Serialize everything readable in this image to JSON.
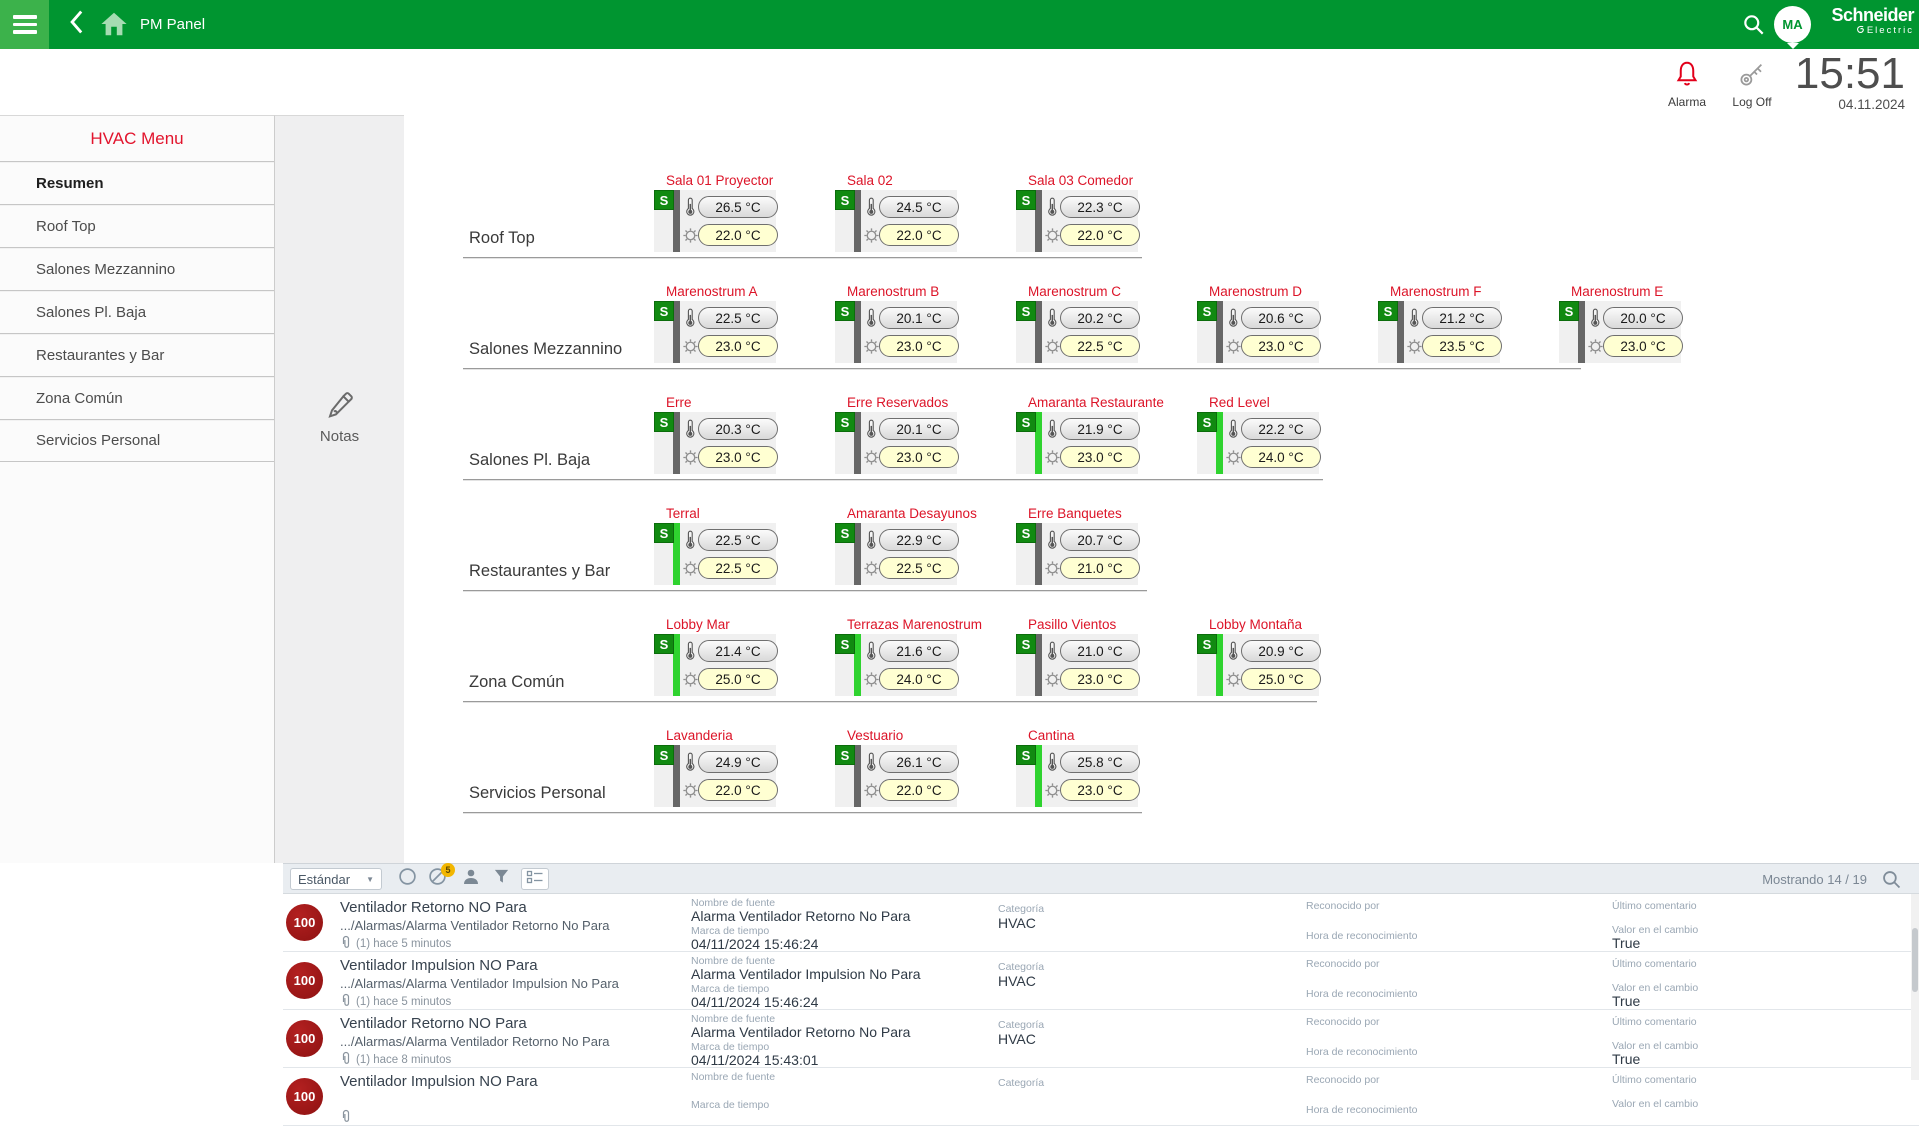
{
  "topbar": {
    "title": "PM Panel",
    "avatar_initials": "MA",
    "brand_line1": "Schneider",
    "brand_line2": "Electric"
  },
  "header": {
    "alarm_label": "Alarma",
    "logoff_label": "Log Off",
    "time": "15:51",
    "date": "04.11.2024"
  },
  "sidebar": {
    "title": "HVAC Menu",
    "items": [
      {
        "label": "Resumen",
        "active": true
      },
      {
        "label": "Roof Top",
        "active": false
      },
      {
        "label": "Salones Mezzannino",
        "active": false
      },
      {
        "label": "Salones Pl. Baja",
        "active": false
      },
      {
        "label": "Restaurantes y Bar",
        "active": false
      },
      {
        "label": "Zona Común",
        "active": false
      },
      {
        "label": "Servicios Personal",
        "active": false
      }
    ]
  },
  "notes": {
    "label": "Notas"
  },
  "groups": [
    {
      "name": "Roof Top",
      "zones": [
        {
          "name": "Sala 01 Proyector",
          "temp": "26.5 °C",
          "setpoint": "22.0 °C",
          "status": "gray"
        },
        {
          "name": "Sala 02",
          "temp": "24.5 °C",
          "setpoint": "22.0 °C",
          "status": "gray"
        },
        {
          "name": "Sala 03 Comedor",
          "temp": "22.3 °C",
          "setpoint": "22.0 °C",
          "status": "gray"
        }
      ]
    },
    {
      "name": "Salones Mezzannino",
      "zones": [
        {
          "name": "Marenostrum A",
          "temp": "22.5 °C",
          "setpoint": "23.0 °C",
          "status": "gray"
        },
        {
          "name": "Marenostrum B",
          "temp": "20.1 °C",
          "setpoint": "23.0 °C",
          "status": "gray"
        },
        {
          "name": "Marenostrum C",
          "temp": "20.2 °C",
          "setpoint": "22.5 °C",
          "status": "gray"
        },
        {
          "name": "Marenostrum D",
          "temp": "20.6 °C",
          "setpoint": "23.0 °C",
          "status": "gray"
        },
        {
          "name": "Marenostrum F",
          "temp": "21.2 °C",
          "setpoint": "23.5 °C",
          "status": "gray"
        },
        {
          "name": "Marenostrum E",
          "temp": "20.0 °C",
          "setpoint": "23.0 °C",
          "status": "gray"
        }
      ]
    },
    {
      "name": "Salones Pl. Baja",
      "zones": [
        {
          "name": "Erre",
          "temp": "20.3 °C",
          "setpoint": "23.0 °C",
          "status": "gray"
        },
        {
          "name": "Erre Reservados",
          "temp": "20.1 °C",
          "setpoint": "23.0 °C",
          "status": "gray"
        },
        {
          "name": "Amaranta Restaurante",
          "temp": "21.9 °C",
          "setpoint": "23.0 °C",
          "status": "green"
        },
        {
          "name": "Red Level",
          "temp": "22.2 °C",
          "setpoint": "24.0 °C",
          "status": "green"
        }
      ]
    },
    {
      "name": "Restaurantes y Bar",
      "zones": [
        {
          "name": "Terral",
          "temp": "22.5 °C",
          "setpoint": "22.5 °C",
          "status": "green"
        },
        {
          "name": "Amaranta Desayunos",
          "temp": "22.9 °C",
          "setpoint": "22.5 °C",
          "status": "gray"
        },
        {
          "name": "Erre Banquetes",
          "temp": "20.7 °C",
          "setpoint": "21.0 °C",
          "status": "gray"
        }
      ]
    },
    {
      "name": "Zona Común",
      "zones": [
        {
          "name": "Lobby Mar",
          "temp": "21.4 °C",
          "setpoint": "25.0 °C",
          "status": "green"
        },
        {
          "name": "Terrazas Marenostrum",
          "temp": "21.6 °C",
          "setpoint": "24.0 °C",
          "status": "green"
        },
        {
          "name": "Pasillo Vientos",
          "temp": "21.0 °C",
          "setpoint": "23.0 °C",
          "status": "gray"
        },
        {
          "name": "Lobby Montaña",
          "temp": "20.9 °C",
          "setpoint": "25.0 °C",
          "status": "green"
        }
      ]
    },
    {
      "name": "Servicios Personal",
      "zones": [
        {
          "name": "Lavanderia",
          "temp": "24.9 °C",
          "setpoint": "22.0 °C",
          "status": "gray"
        },
        {
          "name": "Vestuario",
          "temp": "26.1 °C",
          "setpoint": "22.0 °C",
          "status": "gray"
        },
        {
          "name": "Cantina",
          "temp": "25.8 °C",
          "setpoint": "23.0 °C",
          "status": "green"
        }
      ]
    }
  ],
  "alarm_panel": {
    "toolbar": {
      "view_label": "Estándar",
      "caret": "▼",
      "badge_count": "5",
      "showing": "Mostrando 14 / 19"
    },
    "field_labels": {
      "source": "Nombre de fuente",
      "timestamp": "Marca de tiempo",
      "category": "Categoría",
      "ack_by": "Reconocido por",
      "ack_time": "Hora de reconocimiento",
      "last_comment": "Último comentario",
      "value_change": "Valor en el cambio"
    },
    "rows": [
      {
        "priority": "100",
        "title": "Ventilador Retorno NO Para",
        "path": ".../Alarmas/Alarma Ventilador Retorno No Para",
        "attachment": "(1) hace 5 minutos",
        "source": "Alarma Ventilador Retorno No Para",
        "timestamp": "04/11/2024 15:46:24",
        "category": "HVAC",
        "value_change": "True"
      },
      {
        "priority": "100",
        "title": "Ventilador Impulsion NO Para",
        "path": ".../Alarmas/Alarma Ventilador Impulsion No Para",
        "attachment": "(1) hace 5 minutos",
        "source": "Alarma Ventilador Impulsion No Para",
        "timestamp": "04/11/2024 15:46:24",
        "category": "HVAC",
        "value_change": "True"
      },
      {
        "priority": "100",
        "title": "Ventilador Retorno NO Para",
        "path": ".../Alarmas/Alarma Ventilador Retorno No Para",
        "attachment": "(1) hace 8 minutos",
        "source": "Alarma Ventilador Retorno No Para",
        "timestamp": "04/11/2024 15:43:01",
        "category": "HVAC",
        "value_change": "True"
      },
      {
        "priority": "100",
        "title": "Ventilador Impulsion NO Para"
      }
    ]
  },
  "colors": {
    "topbar_green": "#009530",
    "menu_button_green": "#3cb24b",
    "brand_red": "#e2142d",
    "zone_title_red": "#dc1428",
    "status_on_green": "#2fd32f",
    "status_off_gray": "#676767",
    "setpoint_yellow": "#ffffd2",
    "alarm_priority_red": "#8e1212",
    "alarm_bell_red": "#e2001a",
    "badge_yellow": "#f2b600"
  }
}
